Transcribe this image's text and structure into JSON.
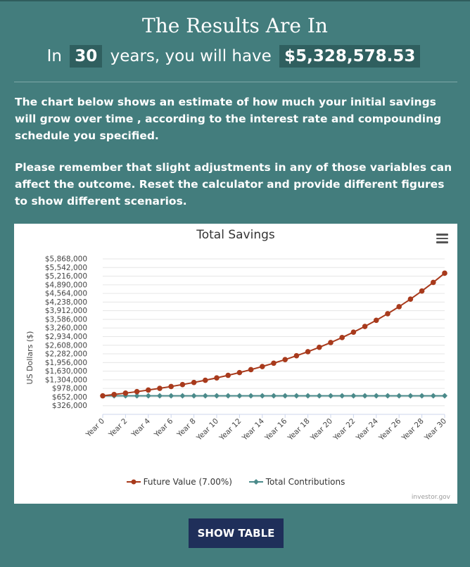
{
  "header": {
    "title": "The Results Are In",
    "prefix": "In",
    "years": "30",
    "middle": "years, you will have",
    "amount": "$5,328,578.53"
  },
  "paragraphs": [
    "The chart below shows an estimate of how much your initial savings will grow over time , according to the interest rate and compounding schedule you specified.",
    "Please remember that slight adjustments in any of those variables can affect the outcome. Reset the calculator and provide different figures to show different scenarios."
  ],
  "chart_data": {
    "type": "line",
    "title": "Total Savings",
    "ylabel": "US Dollars ($)",
    "xlabel": "",
    "x": [
      0,
      1,
      2,
      3,
      4,
      5,
      6,
      7,
      8,
      9,
      10,
      11,
      12,
      13,
      14,
      15,
      16,
      17,
      18,
      19,
      20,
      21,
      22,
      23,
      24,
      25,
      26,
      27,
      28,
      29,
      30
    ],
    "x_tick_labels": [
      "Year 0",
      "Year 2",
      "Year 4",
      "Year 6",
      "Year 8",
      "Year 10",
      "Year 12",
      "Year 14",
      "Year 16",
      "Year 18",
      "Year 20",
      "Year 22",
      "Year 24",
      "Year 26",
      "Year 28",
      "Year 30"
    ],
    "y_tick_labels": [
      "$326,000",
      "$652,000",
      "$978,000",
      "$1,304,000",
      "$1,630,000",
      "$1,956,000",
      "$2,282,000",
      "$2,608,000",
      "$2,934,000",
      "$3,260,000",
      "$3,586,000",
      "$3,912,000",
      "$4,238,000",
      "$4,564,000",
      "$4,890,000",
      "$5,216,000",
      "$5,542,000",
      "$5,868,000"
    ],
    "ylim": [
      326000,
      5868000
    ],
    "series": [
      {
        "name": "Future Value (7.00%)",
        "color": "#a83a1c",
        "values": [
          700000,
          749000,
          801430,
          857530,
          917560,
          981790,
          1050510,
          1124050,
          1202730,
          1286920,
          1377010,
          1473400,
          1576540,
          1686890,
          1804980,
          1931330,
          2066520,
          2211170,
          2365960,
          2531580,
          2708780,
          2898400,
          3101290,
          3318380,
          3550660,
          3799210,
          4065160,
          4349720,
          4654200,
          4979990,
          5328578.53
        ]
      },
      {
        "name": "Total Contributions",
        "color": "#4a8a8a",
        "values": [
          700000,
          700000,
          700000,
          700000,
          700000,
          700000,
          700000,
          700000,
          700000,
          700000,
          700000,
          700000,
          700000,
          700000,
          700000,
          700000,
          700000,
          700000,
          700000,
          700000,
          700000,
          700000,
          700000,
          700000,
          700000,
          700000,
          700000,
          700000,
          700000,
          700000,
          700000
        ]
      }
    ],
    "grid": true,
    "legend": "bottom",
    "credits": "investor.gov"
  },
  "button": {
    "label": "SHOW TABLE"
  },
  "icons": {
    "menu": "hamburger-menu-icon"
  }
}
